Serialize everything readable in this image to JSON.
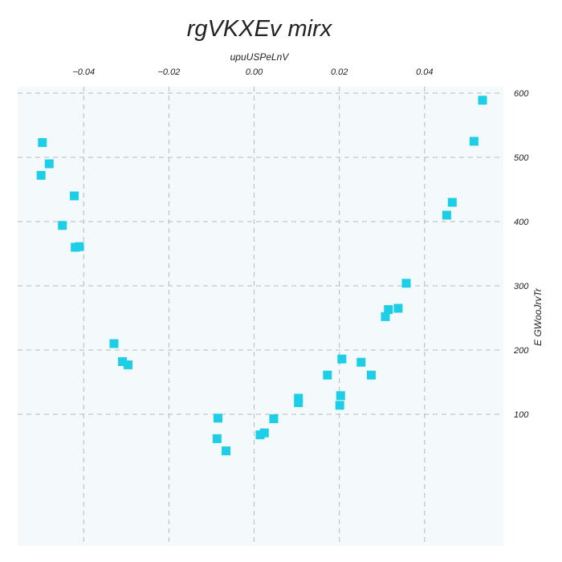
{
  "chart_data": {
    "type": "scatter",
    "title": "rgVKXEv  mirx",
    "xlabel": "upuUSPeLnV",
    "ylabel": "E  GWooJrvTr",
    "x_axis_position": "top",
    "y_axis_position": "right",
    "xlim": [
      -0.0555,
      0.0585
    ],
    "ylim": [
      -105,
      610
    ],
    "xticks": [
      -0.04,
      -0.02,
      0.0,
      0.02,
      0.04
    ],
    "xtick_labels": [
      "−0.04",
      "−0.02",
      "0.00",
      "0.02",
      "0.04"
    ],
    "yticks": [
      100,
      200,
      300,
      400,
      500,
      600
    ],
    "ytick_labels": [
      "100",
      "200",
      "300",
      "400",
      "500",
      "600"
    ],
    "grid": true,
    "marker": "square",
    "series": [
      {
        "color": "#1ccfe6",
        "points": [
          {
            "x": -0.0497,
            "y": 523
          },
          {
            "x": -0.0481,
            "y": 490
          },
          {
            "x": -0.05,
            "y": 472
          },
          {
            "x": -0.0422,
            "y": 440
          },
          {
            "x": -0.045,
            "y": 394
          },
          {
            "x": -0.042,
            "y": 360
          },
          {
            "x": -0.041,
            "y": 361
          },
          {
            "x": -0.0329,
            "y": 210
          },
          {
            "x": -0.0309,
            "y": 182
          },
          {
            "x": -0.0296,
            "y": 177
          },
          {
            "x": -0.0085,
            "y": 94
          },
          {
            "x": -0.0087,
            "y": 62
          },
          {
            "x": -0.0066,
            "y": 43
          },
          {
            "x": 0.0014,
            "y": 68
          },
          {
            "x": 0.0024,
            "y": 71
          },
          {
            "x": 0.0046,
            "y": 93
          },
          {
            "x": 0.0104,
            "y": 125
          },
          {
            "x": 0.0104,
            "y": 118
          },
          {
            "x": 0.0172,
            "y": 161
          },
          {
            "x": 0.0206,
            "y": 186
          },
          {
            "x": 0.0203,
            "y": 129
          },
          {
            "x": 0.0201,
            "y": 114
          },
          {
            "x": 0.0251,
            "y": 181
          },
          {
            "x": 0.0275,
            "y": 161
          },
          {
            "x": 0.0308,
            "y": 252
          },
          {
            "x": 0.0315,
            "y": 263
          },
          {
            "x": 0.0338,
            "y": 265
          },
          {
            "x": 0.0357,
            "y": 304
          },
          {
            "x": 0.0452,
            "y": 410
          },
          {
            "x": 0.0465,
            "y": 430
          },
          {
            "x": 0.0516,
            "y": 525
          },
          {
            "x": 0.0536,
            "y": 589
          }
        ]
      }
    ]
  },
  "colors": {
    "plot_background": "#f4fafb",
    "grid": "#b8b8b8",
    "marker": "#1ccfe6"
  }
}
